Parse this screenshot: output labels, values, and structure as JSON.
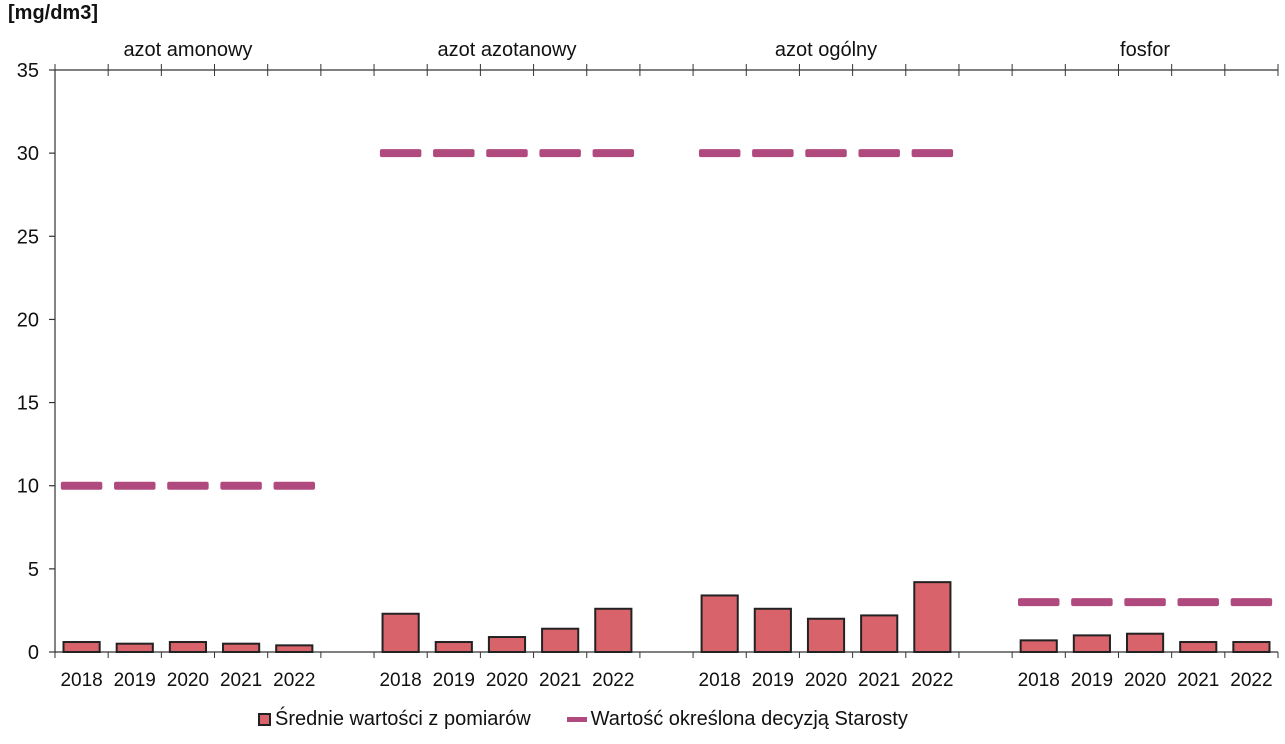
{
  "unit_label": "[mg/dm3]",
  "chart_data": {
    "type": "bar",
    "ylabel": "[mg/dm3]",
    "ylim": [
      0,
      35
    ],
    "yticks": [
      0,
      5,
      10,
      15,
      20,
      25,
      30,
      35
    ],
    "groups": [
      {
        "name": "azot amonowy",
        "categories": [
          "2018",
          "2019",
          "2020",
          "2021",
          "2022"
        ],
        "values": [
          0.6,
          0.5,
          0.6,
          0.5,
          0.4
        ],
        "limits": [
          10,
          10,
          10,
          10,
          10
        ]
      },
      {
        "name": "azot azotanowy",
        "categories": [
          "2018",
          "2019",
          "2020",
          "2021",
          "2022"
        ],
        "values": [
          2.3,
          0.6,
          0.9,
          1.4,
          2.6
        ],
        "limits": [
          30,
          30,
          30,
          30,
          30
        ]
      },
      {
        "name": "azot ogólny",
        "categories": [
          "2018",
          "2019",
          "2020",
          "2021",
          "2022"
        ],
        "values": [
          3.4,
          2.6,
          2.0,
          2.2,
          4.2
        ],
        "limits": [
          30,
          30,
          30,
          30,
          30
        ]
      },
      {
        "name": "fosfor",
        "categories": [
          "2018",
          "2019",
          "2020",
          "2021",
          "2022"
        ],
        "values": [
          0.7,
          1.0,
          1.1,
          0.6,
          0.6
        ],
        "limits": [
          3,
          3,
          3,
          3,
          3
        ]
      }
    ],
    "series": [
      {
        "name": "Średnie wartości z pomiarów",
        "kind": "bar",
        "color": "#d9636b"
      },
      {
        "name": "Wartość określona decyzją Starosty",
        "kind": "marker",
        "color": "#b04a7e"
      }
    ],
    "legend_position": "bottom",
    "grid": false
  },
  "legend": {
    "bar_label": "Średnie wartości z pomiarów",
    "line_label": "Wartość określona decyzją Starosty"
  }
}
